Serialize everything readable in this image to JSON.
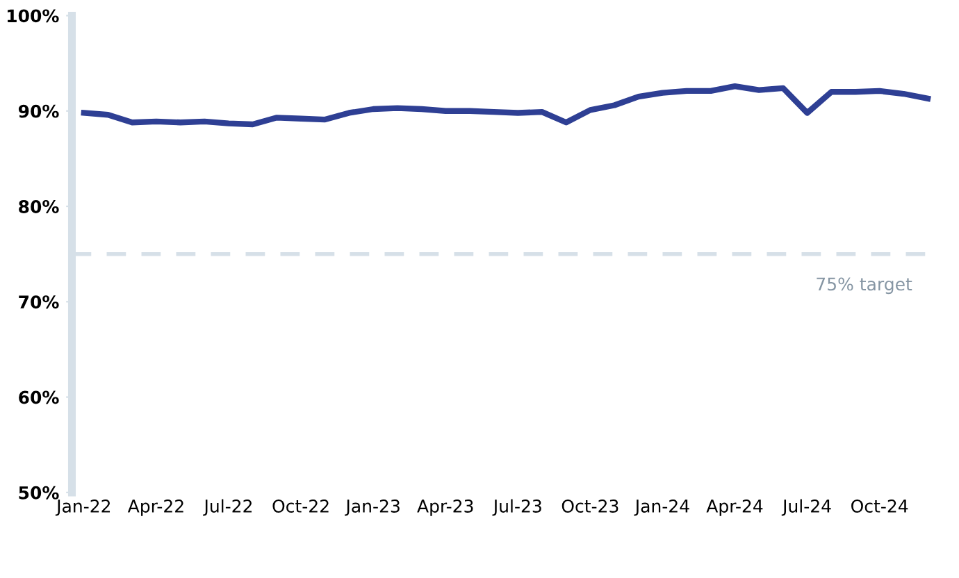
{
  "chart_data": {
    "type": "line",
    "categories": [
      "Jan-22",
      null,
      null,
      "Apr-22",
      null,
      null,
      "Jul-22",
      null,
      null,
      "Oct-22",
      null,
      null,
      "Jan-23",
      null,
      null,
      "Apr-23",
      null,
      null,
      "Jul-23",
      null,
      null,
      "Oct-23",
      null,
      null,
      "Jan-24",
      null,
      null,
      "Apr-24",
      null,
      null,
      "Jul-24",
      null,
      null,
      "Oct-24",
      null,
      null
    ],
    "series": [
      {
        "color": "#2e3f94",
        "values": [
          89.8,
          89.6,
          88.8,
          88.9,
          88.8,
          88.9,
          88.7,
          88.6,
          89.3,
          89.2,
          89.1,
          89.8,
          90.2,
          90.3,
          90.2,
          90.0,
          90.0,
          89.9,
          89.8,
          89.9,
          88.8,
          90.1,
          90.6,
          91.5,
          91.9,
          92.1,
          92.1,
          92.6,
          92.2,
          92.4,
          89.8,
          92.0,
          92.0,
          92.1,
          91.8,
          91.3
        ]
      }
    ],
    "ylim": [
      50,
      100
    ],
    "yticks": [
      {
        "value": 50,
        "label": "50%"
      },
      {
        "value": 60,
        "label": "60%"
      },
      {
        "value": 70,
        "label": "70%"
      },
      {
        "value": 80,
        "label": "80%"
      },
      {
        "value": 90,
        "label": "90%"
      },
      {
        "value": 100,
        "label": "100%"
      }
    ],
    "ref_lines": [
      {
        "axis": "y",
        "value": 75,
        "label": "75% target",
        "color": "#d6e0e8",
        "line_style": "dashed"
      }
    ],
    "grid": false,
    "legend": false,
    "marker": "none",
    "line_style": "solid"
  }
}
